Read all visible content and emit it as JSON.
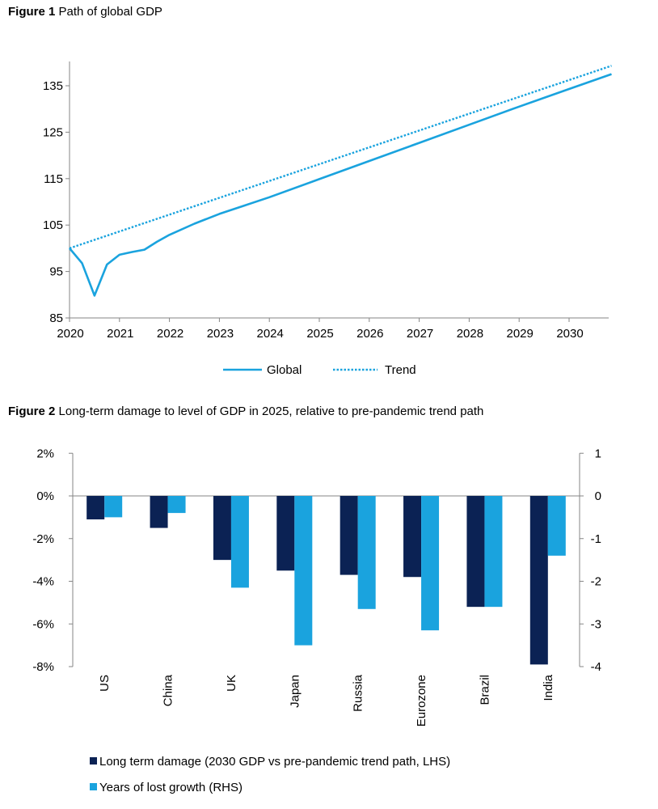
{
  "chart_data": [
    {
      "type": "line",
      "title_bold": "Figure 1",
      "title": "Path of global GDP",
      "xlabel": "",
      "ylabel": "",
      "xlim": [
        2020,
        2030.85
      ],
      "ylim": [
        85,
        140
      ],
      "x_ticks": [
        "2020",
        "2021",
        "2022",
        "2023",
        "2024",
        "2025",
        "2026",
        "2027",
        "2028",
        "2029",
        "2030"
      ],
      "y_ticks": [
        85,
        95,
        105,
        115,
        125,
        135
      ],
      "grid": false,
      "legend_position": "bottom",
      "series": [
        {
          "name": "Global",
          "style": "solid",
          "color": "#1AA3DE",
          "x": [
            2020,
            2020.25,
            2020.5,
            2020.75,
            2021,
            2021.25,
            2021.5,
            2021.75,
            2022,
            2022.5,
            2023,
            2023.5,
            2024,
            2025,
            2026,
            2027,
            2028,
            2029,
            2030,
            2030.85
          ],
          "y": [
            100,
            96.8,
            89.8,
            96.5,
            98.6,
            99.2,
            99.7,
            101.4,
            102.9,
            105.3,
            107.4,
            109.2,
            111.0,
            114.9,
            118.8,
            122.7,
            126.6,
            130.5,
            134.3,
            137.5
          ]
        },
        {
          "name": "Trend",
          "style": "dotted",
          "color": "#1AA3DE",
          "x": [
            2020,
            2030.85
          ],
          "y": [
            100,
            139.3
          ]
        }
      ]
    },
    {
      "type": "bar",
      "title_bold": "Figure 2",
      "title": "Long-term damage to level of GDP in 2025, relative to pre-pandemic trend path",
      "categories": [
        "US",
        "China",
        "UK",
        "Japan",
        "Russia",
        "Eurozone",
        "Brazil",
        "India"
      ],
      "ylim_left": [
        -8,
        2
      ],
      "ylim_right": [
        -4,
        1
      ],
      "y_ticks_left": [
        "2%",
        "0%",
        "-2%",
        "-4%",
        "-6%",
        "-8%"
      ],
      "y_ticks_left_values": [
        2,
        0,
        -2,
        -4,
        -6,
        -8
      ],
      "y_ticks_right": [
        "1",
        "0",
        "-1",
        "-2",
        "-3",
        "-4"
      ],
      "y_ticks_right_values": [
        1,
        0,
        -1,
        -2,
        -3,
        -4
      ],
      "grid": false,
      "legend_position": "bottom",
      "series": [
        {
          "name": "Long term damage (2030 GDP vs pre-pandemic trend path, LHS)",
          "axis": "left",
          "color": "#0B2254",
          "values": [
            -1.1,
            -1.5,
            -3.0,
            -3.5,
            -3.7,
            -3.8,
            -5.2,
            -7.9
          ]
        },
        {
          "name": "Years of lost growth (RHS)",
          "axis": "right",
          "color": "#1AA3DE",
          "values": [
            -0.5,
            -0.4,
            -2.15,
            -3.5,
            -2.65,
            -3.15,
            -2.6,
            -1.4
          ]
        }
      ]
    }
  ]
}
